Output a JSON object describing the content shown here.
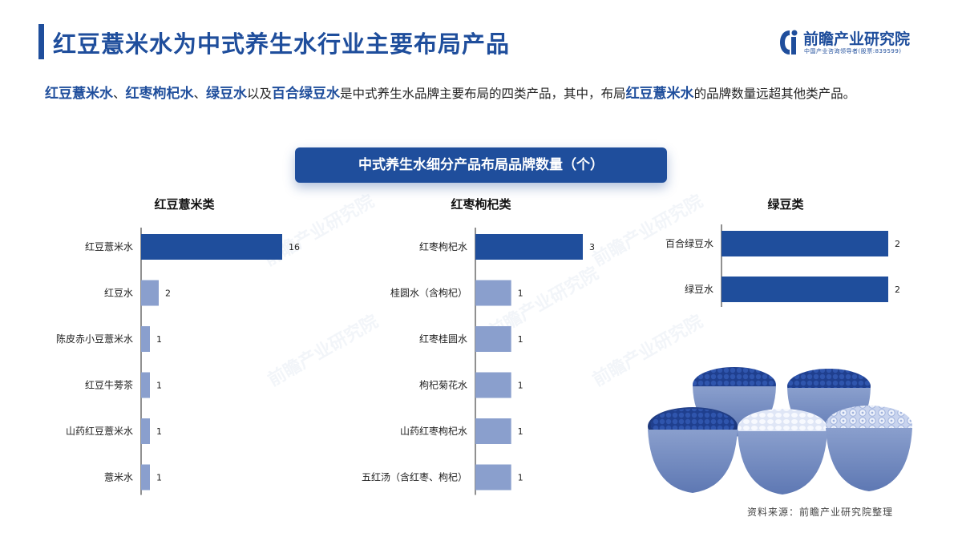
{
  "header": {
    "title": "红豆薏米水为中式养生水行业主要布局产品",
    "logo_name": "前瞻产业研究院",
    "logo_sub": "中国产业咨询领导者(股票:839599)"
  },
  "intro": {
    "parts": [
      {
        "text": "红豆薏米水",
        "hl": true
      },
      {
        "text": "、",
        "hl": false
      },
      {
        "text": "红枣枸杞水",
        "hl": true
      },
      {
        "text": "、",
        "hl": false
      },
      {
        "text": "绿豆水",
        "hl": true
      },
      {
        "text": "以及",
        "hl": false
      },
      {
        "text": "百合绿豆水",
        "hl": true
      },
      {
        "text": "是中式养生水品牌主要布局的四类产品，其中，布局",
        "hl": false
      },
      {
        "text": "红豆薏米水",
        "hl": true
      },
      {
        "text": "的品牌数量远超其他类产品。",
        "hl": false
      }
    ]
  },
  "banner": "中式养生水细分产品布局品牌数量（个）",
  "source": "资料来源：前瞻产业研究院整理",
  "watermark": "前瞻产业研究院",
  "colors": {
    "accent": "#1f4e9c",
    "bar_main": "#1f4e9c",
    "bar_light": "#8a9fcd"
  },
  "chart_data": [
    {
      "type": "bar",
      "orientation": "horizontal",
      "title": "红豆薏米类",
      "categories": [
        "红豆薏米水",
        "红豆水",
        "陈皮赤小豆薏米水",
        "红豆牛蒡茶",
        "山药红豆薏米水",
        "薏米水"
      ],
      "values": [
        16,
        2,
        1,
        1,
        1,
        1
      ],
      "xlim": [
        0,
        16
      ]
    },
    {
      "type": "bar",
      "orientation": "horizontal",
      "title": "红枣枸杞类",
      "categories": [
        "红枣枸杞水",
        "桂圆水（含枸杞）",
        "红枣桂圆水",
        "枸杞菊花水",
        "山药红枣枸杞水",
        "五红汤（含红枣、枸杞）"
      ],
      "values": [
        3,
        1,
        1,
        1,
        1,
        1
      ],
      "xlim": [
        0,
        3
      ]
    },
    {
      "type": "bar",
      "orientation": "horizontal",
      "title": "绿豆类",
      "categories": [
        "百合绿豆水",
        "绿豆水"
      ],
      "values": [
        2,
        2
      ],
      "xlim": [
        0,
        2
      ]
    }
  ]
}
